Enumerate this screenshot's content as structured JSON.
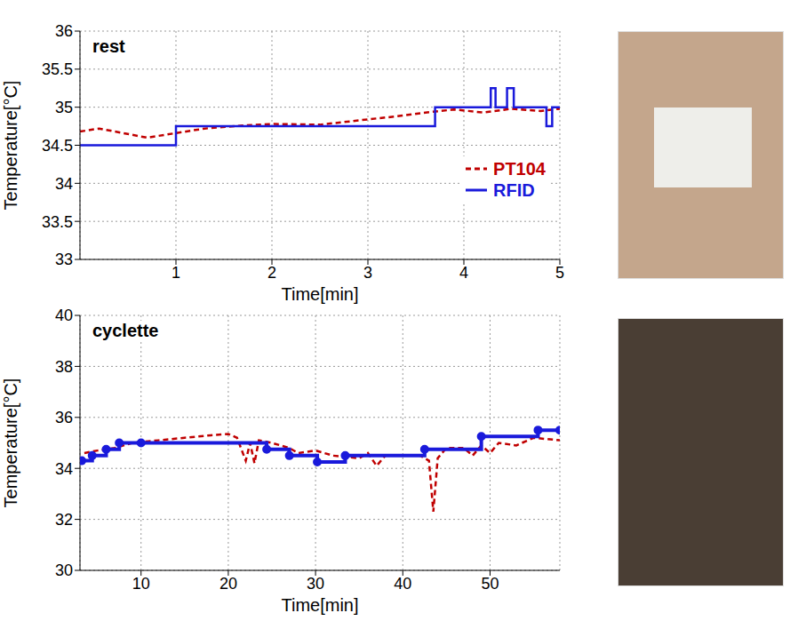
{
  "chart_data": [
    {
      "type": "line",
      "title": "rest",
      "x_label": "Time[min]",
      "y_label": "Temperature[°C]",
      "xlim": [
        0,
        5
      ],
      "xticks": [
        1,
        2,
        3,
        4,
        5
      ],
      "ylim": [
        33,
        36
      ],
      "yticks": [
        33,
        33.5,
        34,
        34.5,
        35,
        35.5,
        36
      ],
      "grid": true,
      "legend": "right",
      "series": [
        {
          "name": "PT104",
          "color": "#c00000",
          "line_style": "dashed",
          "x": [
            0,
            0.2,
            0.45,
            0.7,
            1,
            1.3,
            1.7,
            2,
            2.5,
            3,
            3.3,
            3.6,
            3.9,
            4.2,
            4.5,
            4.8,
            5
          ],
          "values": [
            34.68,
            34.72,
            34.66,
            34.6,
            34.66,
            34.72,
            34.76,
            34.78,
            34.77,
            34.84,
            34.88,
            34.93,
            34.97,
            34.93,
            34.98,
            34.95,
            34.98
          ]
        },
        {
          "name": "RFID",
          "color": "#1a1adb",
          "line_style": "step",
          "x": [
            0,
            1,
            3.7,
            4.28,
            4.33,
            4.45,
            4.52,
            4.86,
            4.92,
            5
          ],
          "values": [
            34.5,
            34.75,
            35,
            35.25,
            35,
            35.25,
            35,
            34.75,
            35,
            35
          ]
        }
      ]
    },
    {
      "type": "line",
      "title": "cyclette",
      "x_label": "Time[min]",
      "y_label": "Temperature[°C]",
      "xlim": [
        3,
        58
      ],
      "xticks": [
        10,
        20,
        30,
        40,
        50
      ],
      "ylim": [
        30,
        40
      ],
      "yticks": [
        30,
        32,
        34,
        36,
        38,
        40
      ],
      "grid": true,
      "series": [
        {
          "name": "PT104",
          "color": "#c00000",
          "line_style": "dashed",
          "x": [
            3.5,
            5,
            7,
            9,
            12,
            15,
            18,
            20,
            21,
            22,
            22.5,
            23,
            23.5,
            25,
            27,
            28,
            30,
            32,
            35,
            36,
            37,
            38,
            40,
            42,
            43,
            43.5,
            44,
            45,
            47,
            48,
            49,
            50,
            51,
            53,
            55,
            58
          ],
          "values": [
            34.6,
            34.7,
            34.8,
            35,
            35.1,
            35.2,
            35.3,
            35.35,
            35.2,
            34.3,
            35,
            34.2,
            35.1,
            35,
            34.8,
            34.6,
            34.7,
            34.5,
            34.4,
            34.6,
            34.1,
            34.5,
            34.5,
            34.5,
            34.3,
            32.3,
            34.4,
            34.8,
            34.8,
            34.5,
            34.9,
            34.6,
            35,
            34.9,
            35.2,
            35.1
          ]
        },
        {
          "name": "RFID",
          "color": "#1a1adb",
          "line_style": "step",
          "marker": "dot",
          "x": [
            3.2,
            4.4,
            6,
            7.5,
            10,
            24.4,
            27,
            30.2,
            33.4,
            42.5,
            49,
            55.5,
            58
          ],
          "values": [
            34.3,
            34.5,
            34.75,
            35,
            35,
            34.75,
            34.5,
            34.25,
            34.5,
            34.75,
            35.25,
            35.5,
            35.5
          ]
        }
      ]
    }
  ]
}
